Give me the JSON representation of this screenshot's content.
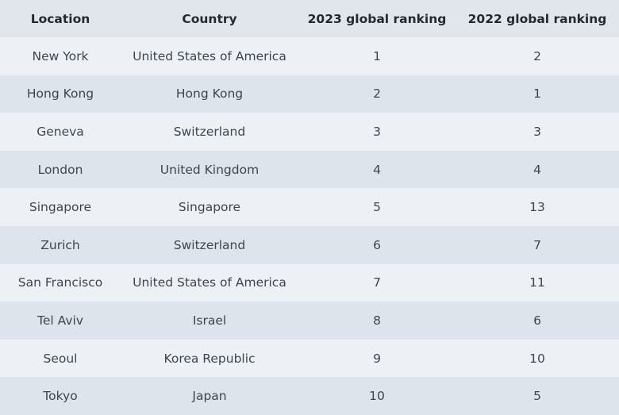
{
  "table": {
    "headers": [
      "Location",
      "Country",
      "2023 global ranking",
      "2022 global ranking"
    ],
    "rows": [
      [
        "New York",
        "United States of America",
        "1",
        "2"
      ],
      [
        "Hong Kong",
        "Hong Kong",
        "2",
        "1"
      ],
      [
        "Geneva",
        "Switzerland",
        "3",
        "3"
      ],
      [
        "London",
        "United Kingdom",
        "4",
        "4"
      ],
      [
        "Singapore",
        "Singapore",
        "5",
        "13"
      ],
      [
        "Zurich",
        "Switzerland",
        "6",
        "7"
      ],
      [
        "San Francisco",
        "United States of America",
        "7",
        "11"
      ],
      [
        "Tel Aviv",
        "Israel",
        "8",
        "6"
      ],
      [
        "Seoul",
        "Korea Republic",
        "9",
        "10"
      ],
      [
        "Tokyo",
        "Japan",
        "10",
        "5"
      ]
    ]
  }
}
